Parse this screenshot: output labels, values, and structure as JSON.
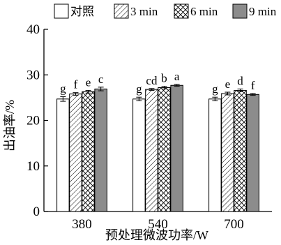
{
  "chart_data": {
    "type": "bar",
    "xlabel": "预处理微波功率/W",
    "ylabel": "出油率/%",
    "ylim": [
      0,
      40
    ],
    "yticks": [
      0,
      10,
      20,
      30,
      40
    ],
    "categories": [
      "380",
      "540",
      "700"
    ],
    "legend_position": "top",
    "series": [
      {
        "name": "对照",
        "pattern": "none",
        "color": "#ffffff",
        "values": [
          24.7,
          24.7,
          24.7
        ],
        "errors": [
          0.5,
          0.4,
          0.4
        ],
        "labels": [
          "g",
          "g",
          "g"
        ]
      },
      {
        "name": "3 min",
        "pattern": "diagonal",
        "color": "#ffffff",
        "values": [
          25.8,
          26.8,
          25.9
        ],
        "errors": [
          0.3,
          0.2,
          0.3
        ],
        "labels": [
          "f",
          "cd",
          "e"
        ]
      },
      {
        "name": "6 min",
        "pattern": "crosshatch",
        "color": "#ffffff",
        "values": [
          26.3,
          27.2,
          26.6
        ],
        "errors": [
          0.3,
          0.3,
          0.3
        ],
        "labels": [
          "e",
          "b",
          "d"
        ]
      },
      {
        "name": "9 min",
        "pattern": "solid",
        "color": "#8c8c8c",
        "values": [
          26.9,
          27.7,
          25.7
        ],
        "errors": [
          0.4,
          0.2,
          0.2
        ],
        "labels": [
          "c",
          "a",
          "f"
        ]
      }
    ]
  }
}
